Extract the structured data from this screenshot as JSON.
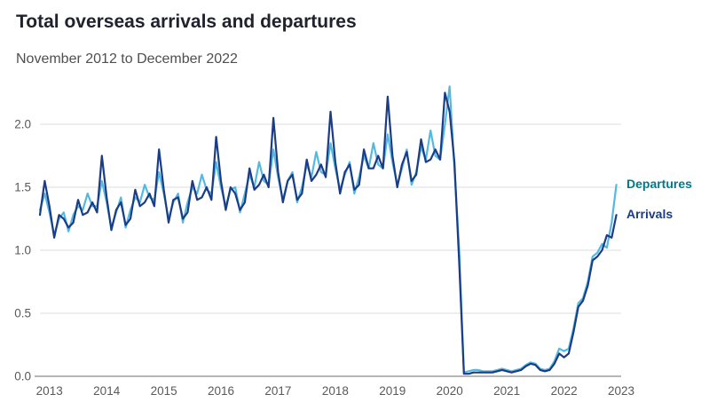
{
  "header": {
    "title": "Total overseas arrivals and departures",
    "subtitle": "November 2012 to December 2022"
  },
  "chart_data": {
    "type": "line",
    "title": "Total overseas arrivals and departures",
    "subtitle": "November 2012 to December 2022",
    "x_unit": "month",
    "x_start": "2012-11",
    "x_end": "2022-12",
    "x_tick_labels": [
      "2013",
      "2014",
      "2015",
      "2016",
      "2017",
      "2018",
      "2019",
      "2020",
      "2021",
      "2022",
      "2023"
    ],
    "y_ticks": [
      0,
      0.5,
      1.0,
      1.5,
      2.0
    ],
    "y_tick_labels": [
      "0.0",
      "0.5",
      "1.0",
      "1.5",
      "2.0"
    ],
    "ylim": [
      0,
      2.35
    ],
    "grid": "horizontal",
    "legend": "end-of-line-labels",
    "colors": {
      "grid": "#dcdcdc",
      "axis": "#6e6e6e",
      "tick_text": "#595959"
    },
    "series": [
      {
        "name": "Departures",
        "color": "#54b9e2",
        "label_color": "#00798c",
        "values": [
          1.32,
          1.45,
          1.3,
          1.12,
          1.25,
          1.3,
          1.15,
          1.28,
          1.35,
          1.32,
          1.45,
          1.35,
          1.35,
          1.55,
          1.38,
          1.18,
          1.3,
          1.42,
          1.18,
          1.32,
          1.42,
          1.38,
          1.52,
          1.42,
          1.4,
          1.62,
          1.45,
          1.25,
          1.38,
          1.45,
          1.22,
          1.38,
          1.5,
          1.45,
          1.6,
          1.48,
          1.45,
          1.7,
          1.5,
          1.35,
          1.48,
          1.5,
          1.3,
          1.45,
          1.6,
          1.5,
          1.7,
          1.55,
          1.52,
          1.8,
          1.58,
          1.4,
          1.55,
          1.62,
          1.38,
          1.5,
          1.68,
          1.58,
          1.78,
          1.62,
          1.6,
          1.85,
          1.65,
          1.48,
          1.6,
          1.7,
          1.45,
          1.58,
          1.75,
          1.65,
          1.85,
          1.68,
          1.65,
          1.92,
          1.7,
          1.52,
          1.65,
          1.8,
          1.52,
          1.62,
          1.82,
          1.72,
          1.95,
          1.75,
          1.72,
          2.0,
          2.3,
          1.65,
          1.0,
          0.03,
          0.04,
          0.05,
          0.05,
          0.04,
          0.04,
          0.04,
          0.05,
          0.06,
          0.05,
          0.04,
          0.05,
          0.06,
          0.09,
          0.11,
          0.1,
          0.06,
          0.05,
          0.06,
          0.12,
          0.22,
          0.2,
          0.22,
          0.38,
          0.58,
          0.62,
          0.75,
          0.95,
          0.98,
          1.05,
          1.02,
          1.22,
          1.52
        ]
      },
      {
        "name": "Arrivals",
        "color": "#1b3c87",
        "label_color": "#1b3c87",
        "values": [
          1.28,
          1.55,
          1.35,
          1.1,
          1.28,
          1.25,
          1.18,
          1.22,
          1.4,
          1.28,
          1.3,
          1.38,
          1.3,
          1.75,
          1.42,
          1.16,
          1.32,
          1.38,
          1.2,
          1.25,
          1.48,
          1.35,
          1.38,
          1.45,
          1.35,
          1.8,
          1.48,
          1.22,
          1.4,
          1.42,
          1.25,
          1.3,
          1.55,
          1.4,
          1.42,
          1.5,
          1.4,
          1.9,
          1.55,
          1.32,
          1.5,
          1.45,
          1.32,
          1.38,
          1.65,
          1.48,
          1.52,
          1.6,
          1.5,
          2.05,
          1.62,
          1.38,
          1.55,
          1.6,
          1.4,
          1.45,
          1.72,
          1.55,
          1.6,
          1.68,
          1.58,
          2.1,
          1.7,
          1.45,
          1.62,
          1.68,
          1.48,
          1.52,
          1.8,
          1.65,
          1.65,
          1.75,
          1.65,
          2.22,
          1.75,
          1.5,
          1.68,
          1.78,
          1.55,
          1.6,
          1.88,
          1.7,
          1.72,
          1.8,
          1.72,
          2.25,
          2.1,
          1.7,
          0.9,
          0.02,
          0.02,
          0.03,
          0.03,
          0.03,
          0.03,
          0.03,
          0.04,
          0.05,
          0.04,
          0.03,
          0.04,
          0.05,
          0.08,
          0.1,
          0.09,
          0.05,
          0.04,
          0.05,
          0.1,
          0.18,
          0.15,
          0.18,
          0.35,
          0.55,
          0.6,
          0.72,
          0.92,
          0.95,
          1.0,
          1.12,
          1.1,
          1.28
        ]
      }
    ]
  }
}
